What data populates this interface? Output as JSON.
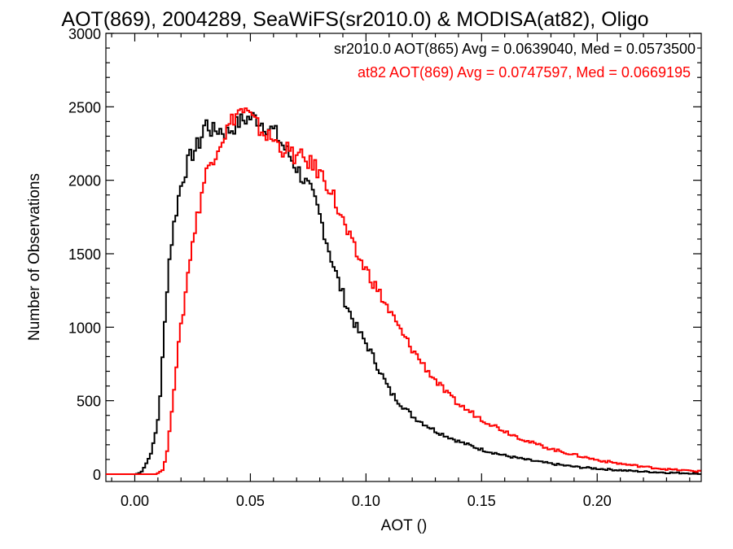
{
  "chart_data": {
    "type": "line",
    "title": "AOT(869), 2004289, SeaWiFS(sr2010.0) & MODISA(at82), Oligo",
    "xlabel": "AOT ()",
    "ylabel": "Number of Observations",
    "xlim": [
      -0.0125,
      0.245
    ],
    "ylim": [
      -50,
      3000
    ],
    "xticks": [
      0.0,
      0.05,
      0.1,
      0.15,
      0.2
    ],
    "xtick_labels": [
      "0.00",
      "0.05",
      "0.10",
      "0.15",
      "0.20"
    ],
    "yticks": [
      0,
      500,
      1000,
      1500,
      2000,
      2500,
      3000
    ],
    "ytick_labels": [
      "0",
      "500",
      "1000",
      "1500",
      "2000",
      "2500",
      "3000"
    ],
    "grid": false,
    "legend_position": "top-right",
    "series": [
      {
        "name": "sr2010.0 AOT(865) Avg = 0.0639040, Med = 0.0573500",
        "color": "#000000",
        "x": [
          -0.0125,
          0.0,
          0.002,
          0.004,
          0.006,
          0.008,
          0.01,
          0.012,
          0.014,
          0.016,
          0.018,
          0.02,
          0.022,
          0.024,
          0.026,
          0.028,
          0.03,
          0.033,
          0.036,
          0.039,
          0.042,
          0.045,
          0.048,
          0.051,
          0.054,
          0.057,
          0.06,
          0.063,
          0.066,
          0.069,
          0.072,
          0.075,
          0.078,
          0.081,
          0.084,
          0.087,
          0.09,
          0.093,
          0.096,
          0.1,
          0.105,
          0.11,
          0.115,
          0.12,
          0.125,
          0.13,
          0.135,
          0.14,
          0.15,
          0.16,
          0.17,
          0.18,
          0.19,
          0.2,
          0.21,
          0.22,
          0.23,
          0.245
        ],
        "values": [
          0,
          0,
          10,
          60,
          120,
          230,
          420,
          900,
          1400,
          1650,
          1850,
          2000,
          2100,
          2170,
          2220,
          2270,
          2400,
          2330,
          2350,
          2320,
          2360,
          2400,
          2420,
          2430,
          2400,
          2360,
          2330,
          2250,
          2180,
          2100,
          2020,
          1940,
          1830,
          1680,
          1500,
          1340,
          1200,
          1080,
          980,
          880,
          720,
          560,
          470,
          390,
          340,
          290,
          255,
          220,
          165,
          125,
          95,
          70,
          50,
          37,
          26,
          17,
          10,
          5
        ]
      },
      {
        "name": "at82 AOT(869) Avg = 0.0747597, Med = 0.0669195",
        "color": "#ff0000",
        "x": [
          -0.0125,
          0.0,
          0.004,
          0.008,
          0.01,
          0.012,
          0.014,
          0.016,
          0.018,
          0.02,
          0.022,
          0.024,
          0.026,
          0.028,
          0.03,
          0.033,
          0.036,
          0.039,
          0.042,
          0.045,
          0.048,
          0.051,
          0.054,
          0.057,
          0.06,
          0.063,
          0.066,
          0.069,
          0.072,
          0.075,
          0.078,
          0.081,
          0.084,
          0.087,
          0.09,
          0.093,
          0.096,
          0.1,
          0.105,
          0.11,
          0.115,
          0.12,
          0.125,
          0.13,
          0.135,
          0.14,
          0.15,
          0.16,
          0.17,
          0.18,
          0.19,
          0.2,
          0.21,
          0.22,
          0.23,
          0.245
        ],
        "values": [
          0,
          0,
          0,
          0,
          10,
          40,
          200,
          520,
          820,
          1050,
          1300,
          1550,
          1700,
          1880,
          2030,
          2150,
          2250,
          2330,
          2420,
          2480,
          2460,
          2400,
          2340,
          2300,
          2270,
          2220,
          2200,
          2160,
          2150,
          2120,
          2080,
          2020,
          1950,
          1820,
          1700,
          1580,
          1480,
          1380,
          1240,
          1100,
          960,
          840,
          730,
          630,
          540,
          470,
          370,
          290,
          220,
          170,
          130,
          95,
          70,
          50,
          33,
          18
        ]
      }
    ]
  }
}
